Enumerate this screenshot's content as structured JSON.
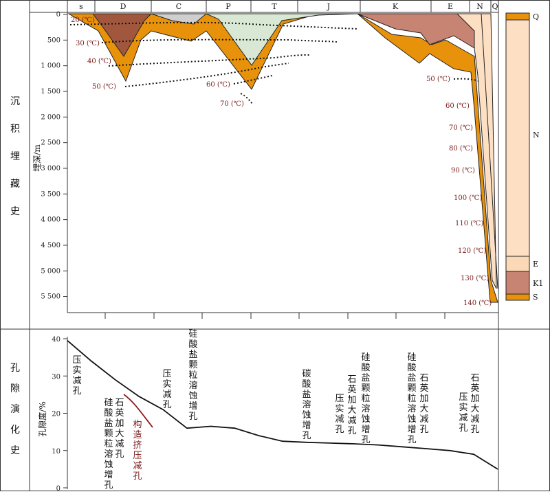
{
  "section_labels": {
    "burial": [
      "沉",
      "积",
      "埋",
      "藏",
      "史"
    ],
    "porosity": [
      "孔",
      "隙",
      "演",
      "化",
      "史"
    ]
  },
  "chart_data": [
    {
      "type": "area",
      "periods": [
        "s",
        "D",
        "C",
        "P",
        "T",
        "J",
        "K",
        "E",
        "N",
        "Q"
      ],
      "ylabel": "埋深/m",
      "y_ticks": [
        0,
        500,
        1000,
        1500,
        2000,
        2500,
        3000,
        3500,
        4000,
        4500,
        5000,
        5500
      ],
      "y_tick_labels": [
        "0",
        "500",
        "1 000",
        "1 500",
        "2 000",
        "2 500",
        "3 000",
        "3 500",
        "4 000",
        "4 500",
        "5 000",
        "5 500"
      ],
      "ylim": [
        0,
        5800
      ],
      "isotherms": [
        "20 (℃)",
        "30 (℃)",
        "40 (℃)",
        "50 (℃)",
        "60 (℃)",
        "70 (℃)",
        "50 (℃)",
        "60 (℃)",
        "70 (℃)",
        "80 (℃)",
        "90 (℃)",
        "100 (℃)",
        "110 (℃)",
        "120 (℃)",
        "130 (℃)",
        "140 (℃)"
      ],
      "stratigraphic_column": {
        "labels": [
          "Q",
          "N",
          "E",
          "K1",
          "S"
        ],
        "colors": {
          "Q": "#e8920c",
          "N": "#fde0c4",
          "E": "#fcd9b6",
          "K1": "#c88473",
          "S": "#e8920c"
        }
      },
      "colors": {
        "lower_unit": "#e8920c",
        "devonian": "#a0573e",
        "cretaceous": "#c88473",
        "triassic_jurassic": "#d8e8d4",
        "carboniferous": "#cfcfcf",
        "neogene": "#fde0c4"
      }
    },
    {
      "type": "line",
      "ylabel": "孔隙度/%",
      "y_ticks": [
        0,
        10,
        20,
        30,
        40
      ],
      "ylim": [
        0,
        40
      ],
      "series": [
        {
          "values": [
            39.5,
            34,
            29,
            24.5,
            21,
            16,
            16.5,
            16,
            14,
            12.5,
            12.2,
            12.0,
            11.8,
            11.5,
            11,
            10.5,
            10,
            9,
            5
          ]
        }
      ],
      "annotations": {
        "a1": [
          "压",
          "实",
          "减",
          "孔"
        ],
        "a2": [
          "石",
          "英",
          "加",
          "大",
          "减",
          "孔"
        ],
        "a3": [
          "硅",
          "酸",
          "盐",
          "颗",
          "粒",
          "溶",
          "蚀",
          "增",
          "孔"
        ],
        "a4": [
          "构",
          "造",
          "挤",
          "压",
          "减",
          "孔"
        ],
        "a5": [
          "压",
          "实",
          "减",
          "孔"
        ],
        "a6": [
          "硅",
          "酸",
          "盐",
          "颗",
          "粒",
          "溶",
          "蚀",
          "增",
          "孔"
        ],
        "a7": [
          "碳",
          "酸",
          "盐",
          "溶",
          "蚀",
          "增",
          "孔"
        ],
        "a8": [
          "压",
          "实",
          "减",
          "孔"
        ],
        "a9": [
          "石",
          "英",
          "加",
          "大",
          "减",
          "孔"
        ],
        "a10": [
          "硅",
          "酸",
          "盐",
          "颗",
          "粒",
          "溶",
          "蚀",
          "增",
          "孔"
        ],
        "a11": [
          "石",
          "英",
          "加",
          "大",
          "减",
          "孔"
        ],
        "a12": [
          "硅",
          "酸",
          "盐",
          "颗",
          "粒",
          "溶",
          "蚀",
          "增",
          "孔"
        ],
        "a13": [
          "压",
          "实",
          "减",
          "孔"
        ],
        "a14": [
          "石",
          "英",
          "加",
          "大",
          "减",
          "孔"
        ]
      }
    }
  ]
}
